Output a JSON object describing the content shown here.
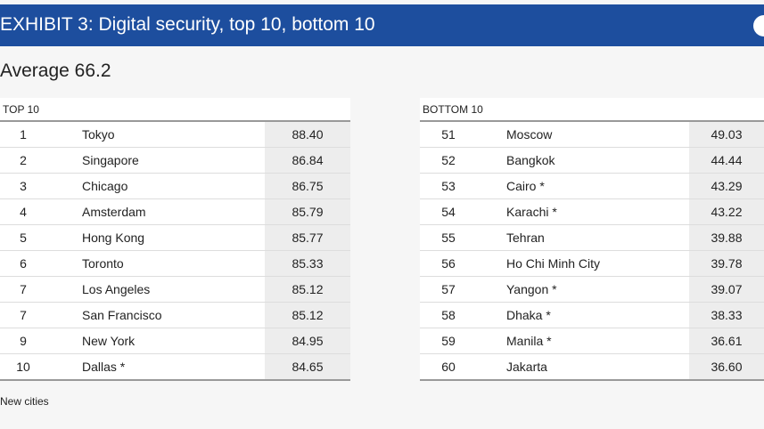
{
  "header": {
    "title": "EXHIBIT 3: Digital security, top 10, bottom 10"
  },
  "subtitle": "Average 66.2",
  "tables": [
    {
      "label": "TOP 10",
      "rows": [
        [
          "1",
          "Tokyo",
          "88.40"
        ],
        [
          "2",
          "Singapore",
          "86.84"
        ],
        [
          "3",
          "Chicago",
          "86.75"
        ],
        [
          "4",
          "Amsterdam",
          "85.79"
        ],
        [
          "5",
          "Hong Kong",
          "85.77"
        ],
        [
          "6",
          "Toronto",
          "85.33"
        ],
        [
          "7",
          "Los Angeles",
          "85.12"
        ],
        [
          "7",
          "San Francisco",
          "85.12"
        ],
        [
          "9",
          "New York",
          "84.95"
        ],
        [
          "10",
          "Dallas *",
          "84.65"
        ]
      ]
    },
    {
      "label": "BOTTOM 10",
      "rows": [
        [
          "51",
          "Moscow",
          "49.03"
        ],
        [
          "52",
          "Bangkok",
          "44.44"
        ],
        [
          "53",
          "Cairo *",
          "43.29"
        ],
        [
          "54",
          "Karachi *",
          "43.22"
        ],
        [
          "55",
          "Tehran",
          "39.88"
        ],
        [
          "56",
          "Ho Chi Minh City",
          "39.78"
        ],
        [
          "57",
          "Yangon *",
          "39.07"
        ],
        [
          "58",
          "Dhaka *",
          "38.33"
        ],
        [
          "59",
          "Manila *",
          "36.61"
        ],
        [
          "60",
          "Jakarta",
          "36.60"
        ]
      ]
    }
  ],
  "footnote": "New cities"
}
